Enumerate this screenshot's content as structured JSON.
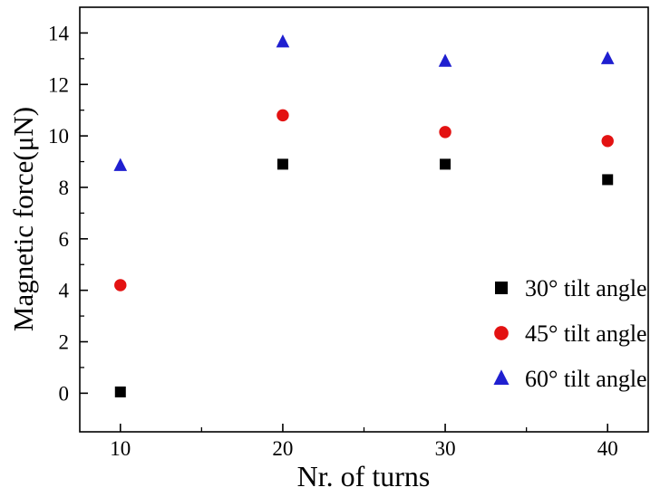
{
  "chart_data": {
    "type": "scatter",
    "title": "",
    "xlabel": "Nr. of turns",
    "ylabel": "Magnetic force(μN)",
    "x": [
      10,
      20,
      30,
      40
    ],
    "series": [
      {
        "name": "30° tilt angle",
        "marker": "square",
        "color": "#000000",
        "values": [
          0.05,
          8.9,
          8.9,
          8.3
        ]
      },
      {
        "name": "45° tilt angle",
        "marker": "circle",
        "color": "#e31212",
        "values": [
          4.2,
          10.8,
          10.15,
          9.8
        ]
      },
      {
        "name": "60° tilt angle",
        "marker": "triangle",
        "color": "#1f1fd0",
        "values": [
          8.85,
          13.65,
          12.9,
          13.0
        ]
      }
    ],
    "xlim": [
      7.5,
      42.5
    ],
    "ylim": [
      -1.5,
      15
    ],
    "x_ticks": [
      10,
      20,
      30,
      40
    ],
    "x_minor_ticks": [
      15,
      25,
      35
    ],
    "y_ticks": [
      0,
      2,
      4,
      6,
      8,
      10,
      12,
      14
    ],
    "y_minor_ticks": [
      1,
      3,
      5,
      7,
      9,
      11,
      13
    ],
    "grid": false,
    "legend_position": "inside-right-bottom",
    "frame_color": "#000000",
    "tick_label_color": "#000000"
  }
}
